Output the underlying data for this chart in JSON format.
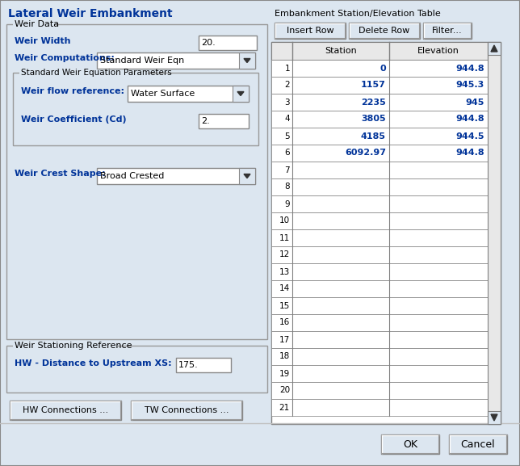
{
  "title": "Lateral Weir Embankment",
  "bg_color": "#dce6f0",
  "panel_bg": "#dce6f0",
  "white": "#ffffff",
  "light_gray": "#e8e8e8",
  "mid_gray": "#c0c0c0",
  "border_color": "#808080",
  "text_color": "#000000",
  "blue_text": "#003399",
  "btn_face": "#dce6f0",
  "weir_data_label": "Weir Data",
  "weir_width_label": "Weir Width",
  "weir_width_value": "20.",
  "weir_computations_label": "Weir Computations:",
  "weir_computations_value": "Standard Weir Eqn",
  "std_weir_params_label": "Standard Weir Equation Parameters",
  "weir_flow_ref_label": "Weir flow reference:",
  "weir_flow_ref_value": "Water Surface",
  "weir_coeff_label": "Weir Coefficient (Cd)",
  "weir_coeff_value": "2.",
  "weir_crest_label": "Weir Crest Shape:",
  "weir_crest_value": "Broad Crested",
  "weir_stationing_label": "Weir Stationing Reference",
  "hw_dist_label": "HW - Distance to Upstream XS:",
  "hw_dist_value": "175.",
  "hw_conn_btn": "HW Connections ...",
  "tw_conn_btn": "TW Connections ...",
  "emb_table_label": "Embankment Station/Elevation Table",
  "insert_row_btn": "Insert Row",
  "delete_row_btn": "Delete Row",
  "filter_btn": "Filter...",
  "table_headers": [
    "Station",
    "Elevation"
  ],
  "table_rows": 21,
  "station_data": [
    "0",
    "1157",
    "2235",
    "3805",
    "4185",
    "6092.97"
  ],
  "elevation_data": [
    "944.8",
    "945.3",
    "945",
    "944.8",
    "944.5",
    "944.8"
  ],
  "ok_btn": "OK",
  "cancel_btn": "Cancel"
}
